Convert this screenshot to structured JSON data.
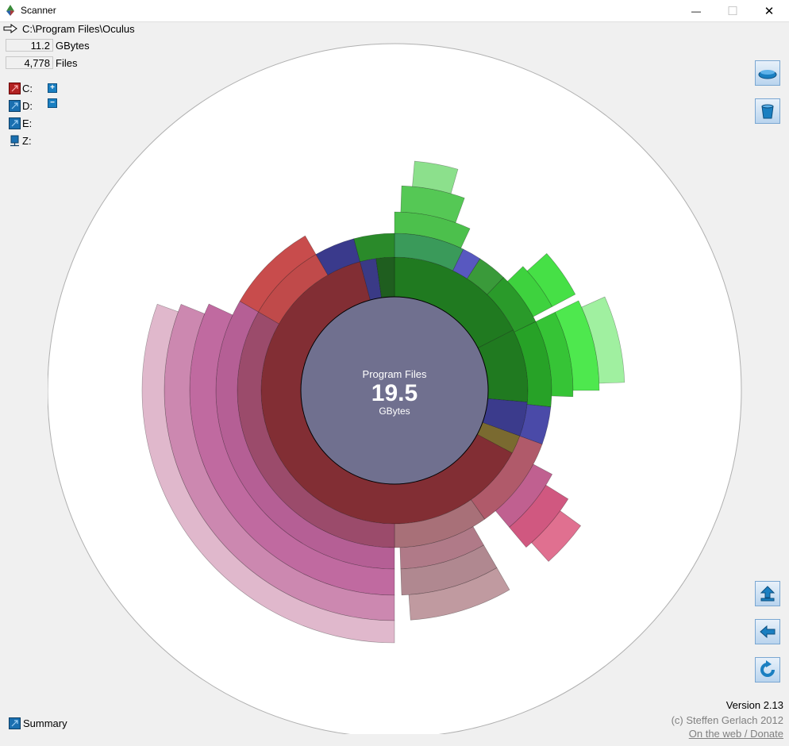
{
  "window": {
    "title": "Scanner",
    "close_glyph": "✕",
    "min_glyph": "—",
    "max_glyph": "☐"
  },
  "path": {
    "arrow_icon": "arrow-right-icon",
    "value": "C:\\Program Files\\Oculus"
  },
  "stats": {
    "size_value": "11.2",
    "size_unit": "GBytes",
    "files_value": "4,778",
    "files_unit": "Files"
  },
  "drives": [
    {
      "label": "C:",
      "color": "#b22222"
    },
    {
      "label": "D:",
      "color": "#1a6fb0"
    },
    {
      "label": "E:",
      "color": "#1a6fb0"
    },
    {
      "label": "Z:",
      "color": "#1a6fb0"
    }
  ],
  "drive_buttons": {
    "plus": "+",
    "minus": "−"
  },
  "center": {
    "name": "Program Files",
    "size": "19.5",
    "unit": "GBytes"
  },
  "footer": {
    "summary_label": "Summary",
    "version": "Version 2.13",
    "copyright": "(c) Steffen Gerlach 2012",
    "web_link": "On the web / Donate"
  },
  "colors": {
    "background": "#f0f0f0",
    "center_fill": "#70708f",
    "accent": "#1a7fc1"
  }
}
